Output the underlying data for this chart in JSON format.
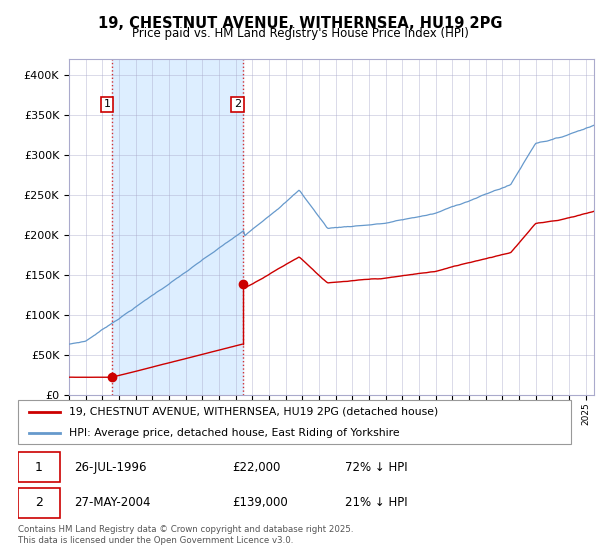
{
  "title": "19, CHESTNUT AVENUE, WITHERNSEA, HU19 2PG",
  "subtitle": "Price paid vs. HM Land Registry's House Price Index (HPI)",
  "sale1_year": 1996.57,
  "sale1_price": 22000,
  "sale1_date": "26-JUL-1996",
  "sale1_note": "72% ↓ HPI",
  "sale2_year": 2004.41,
  "sale2_price": 139000,
  "sale2_date": "27-MAY-2004",
  "sale2_note": "21% ↓ HPI",
  "legend_red": "19, CHESTNUT AVENUE, WITHERNSEA, HU19 2PG (detached house)",
  "legend_blue": "HPI: Average price, detached house, East Riding of Yorkshire",
  "footer": "Contains HM Land Registry data © Crown copyright and database right 2025.\nThis data is licensed under the Open Government Licence v3.0.",
  "ylim": [
    0,
    420000
  ],
  "yticks": [
    0,
    50000,
    100000,
    150000,
    200000,
    250000,
    300000,
    350000,
    400000
  ],
  "xmin": 1994,
  "xmax": 2025.5,
  "red_color": "#cc0000",
  "blue_color": "#6699cc",
  "blue_fill_color": "#ddeeff",
  "grid_color": "#aaaacc"
}
